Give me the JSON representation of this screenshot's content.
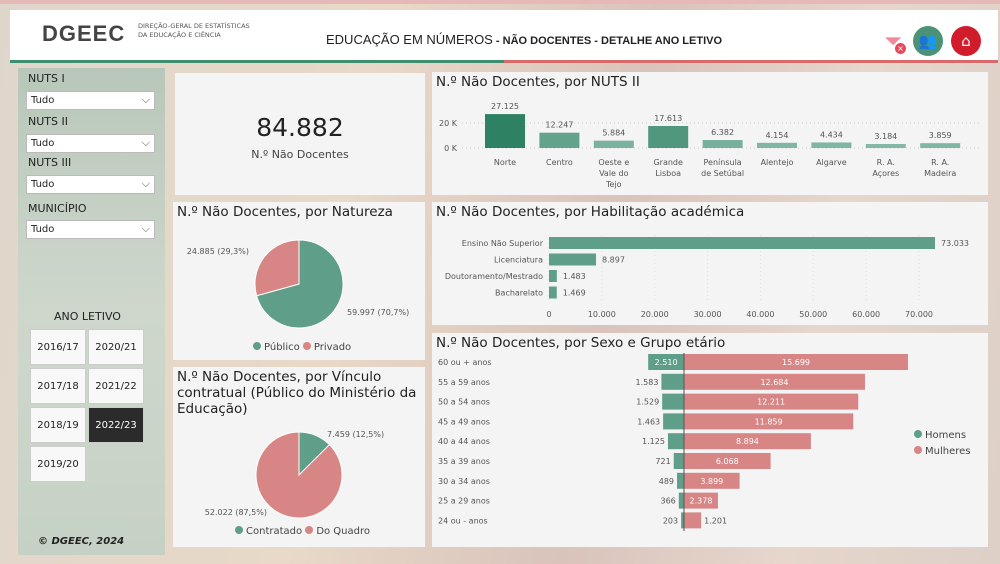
{
  "header": {
    "logo": "DGEEC",
    "logo_subtitle_1": "DIREÇÃO-GERAL DE ESTATÍSTICAS",
    "logo_subtitle_2": "DA EDUCAÇÃO E CIÊNCIA",
    "title_main": "EDUCAÇÃO EM NÚMEROS",
    "title_rest": " - NÃO DOCENTES - DETALHE ANO LETIVO",
    "icons": [
      "clear-filter-icon",
      "people-icon",
      "home-icon"
    ]
  },
  "filters": {
    "nuts1": {
      "label": "NUTS I",
      "value": "Tudo"
    },
    "nuts2": {
      "label": "NUTS II",
      "value": "Tudo"
    },
    "nuts3": {
      "label": "NUTS III",
      "value": "Tudo"
    },
    "municipio": {
      "label": "MUNICÍPIO",
      "value": "Tudo"
    }
  },
  "ano_letivo": {
    "label": "ANO LETIVO",
    "years": [
      "2016/17",
      "2020/21",
      "2017/18",
      "2021/22",
      "2018/19",
      "2022/23",
      "2019/20"
    ],
    "selected": "2022/23"
  },
  "footer": "© DGEEC, 2024",
  "kpi": {
    "value": "84.882",
    "label": "N.º Não Docentes"
  },
  "colors": {
    "green": "#5f9e88",
    "red": "#d78585",
    "dark": "#2b2b2b"
  },
  "chart_data": [
    {
      "id": "nuts2",
      "type": "bar",
      "title": "N.º Não Docentes, por NUTS II",
      "categories": [
        "Norte",
        "Centro",
        "Oeste e Vale do Tejo",
        "Grande Lisboa",
        "Península de Setúbal",
        "Alentejo",
        "Algarve",
        "R. A. Açores",
        "R. A. Madeira"
      ],
      "values": [
        27125,
        12247,
        5884,
        17613,
        6382,
        4154,
        4434,
        3184,
        3859
      ],
      "labels": [
        "27.125",
        "12.247",
        "5.884",
        "17.613",
        "6.382",
        "4.154",
        "4.434",
        "3.184",
        "3.859"
      ],
      "yticks": [
        "0 K",
        "20 K"
      ]
    },
    {
      "id": "natureza",
      "type": "pie",
      "title": "N.º Não Docentes, por Natureza",
      "slices": [
        {
          "name": "Público",
          "value": 59997,
          "label": "59.997 (70,7%)"
        },
        {
          "name": "Privado",
          "value": 24885,
          "label": "24.885 (29,3%)"
        }
      ]
    },
    {
      "id": "habilitacao",
      "type": "bar",
      "title": "N.º Não Docentes, por Habilitação académica",
      "categories": [
        "Ensino Não Superior",
        "Licenciatura",
        "Doutoramento/Mestrado",
        "Bacharelato"
      ],
      "values": [
        73033,
        8897,
        1483,
        1469
      ],
      "labels": [
        "73.033",
        "8.897",
        "1.483",
        "1.469"
      ],
      "xticks": [
        "0",
        "10.000",
        "20.000",
        "30.000",
        "40.000",
        "50.000",
        "60.000",
        "70.000"
      ],
      "xlim": [
        0,
        70000
      ]
    },
    {
      "id": "vinculo",
      "type": "pie",
      "title": "N.º Não Docentes, por Vínculo contratual (Público do Ministério da Educação)",
      "slices": [
        {
          "name": "Contratado",
          "value": 7459,
          "label": "7.459 (12,5%)"
        },
        {
          "name": "Do Quadro",
          "value": 52022,
          "label": "52.022 (87,5%)"
        }
      ]
    },
    {
      "id": "sexo",
      "type": "bar",
      "title": "N.º Não Docentes, por Sexo e Grupo etário",
      "categories": [
        "60 ou + anos",
        "55 a 59 anos",
        "50 a 54 anos",
        "45 a 49 anos",
        "40 a 44 anos",
        "35 a 39 anos",
        "30 a 34 anos",
        "25 a 29 anos",
        "24 ou - anos"
      ],
      "series": [
        {
          "name": "Homens",
          "values": [
            2510,
            1583,
            1529,
            1463,
            1125,
            721,
            489,
            366,
            203
          ],
          "labels": [
            "2.510",
            "1.583",
            "1.529",
            "1.463",
            "1.125",
            "721",
            "489",
            "366",
            "203"
          ]
        },
        {
          "name": "Mulheres",
          "values": [
            15699,
            12684,
            12211,
            11859,
            8894,
            6068,
            3899,
            2378,
            1201
          ],
          "labels": [
            "15.699",
            "12.684",
            "12.211",
            "11.859",
            "8.894",
            "6.068",
            "3.899",
            "2.378",
            "1.201"
          ]
        }
      ]
    }
  ]
}
